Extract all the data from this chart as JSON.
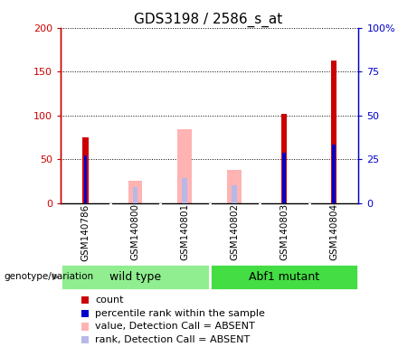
{
  "title": "GDS3198 / 2586_s_at",
  "samples": [
    "GSM140786",
    "GSM140800",
    "GSM140801",
    "GSM140802",
    "GSM140803",
    "GSM140804"
  ],
  "count_values": [
    75,
    null,
    null,
    null,
    102,
    163
  ],
  "percentile_values": [
    27,
    null,
    null,
    null,
    28.5,
    33.5
  ],
  "absent_value_values": [
    null,
    25,
    84,
    38,
    null,
    null
  ],
  "absent_rank_values": [
    null,
    18,
    29,
    20,
    null,
    null
  ],
  "left_ylim": [
    0,
    200
  ],
  "right_ylim": [
    0,
    100
  ],
  "left_yticks": [
    0,
    50,
    100,
    150,
    200
  ],
  "right_yticks": [
    0,
    25,
    50,
    75,
    100
  ],
  "right_yticklabels": [
    "0",
    "25",
    "50",
    "75",
    "100%"
  ],
  "left_color": "#cc0000",
  "right_color": "#0000cc",
  "absent_value_color": "#ffb3b3",
  "absent_rank_color": "#b8b8e8",
  "background_color": "#ffffff",
  "plot_bg_color": "#ffffff",
  "sample_box_color": "#d0d0d0",
  "wild_type_color": "#90ee90",
  "abf1_color": "#44dd44",
  "legend_items": [
    {
      "label": "count",
      "color": "#cc0000"
    },
    {
      "label": "percentile rank within the sample",
      "color": "#0000cc"
    },
    {
      "label": "value, Detection Call = ABSENT",
      "color": "#ffb3b3"
    },
    {
      "label": "rank, Detection Call = ABSENT",
      "color": "#b8b8e8"
    }
  ],
  "genotype_label": "genotype/variation",
  "title_fontsize": 11,
  "axis_fontsize": 8,
  "legend_fontsize": 8,
  "sample_fontsize": 7.5
}
